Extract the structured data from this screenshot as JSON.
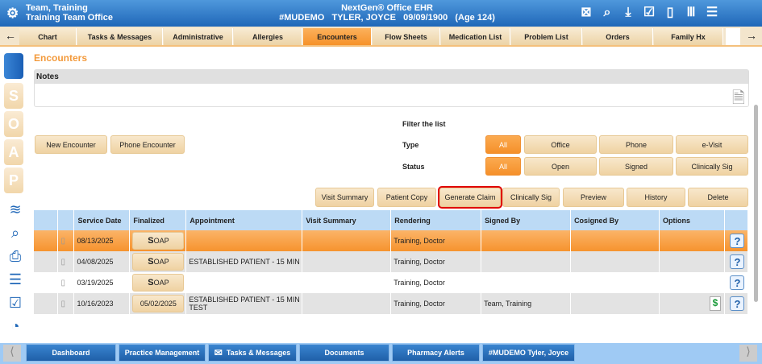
{
  "header": {
    "user": "Team, Training",
    "office": "Training Team Office",
    "app_title": "NextGen® Office EHR",
    "patient_line": "#MUDEMO   TYLER, JOYCE   09/09/1900   (Age 124)",
    "icons": [
      "gear-icon",
      "close-folder-icon",
      "search-doc-icon",
      "download-icon",
      "calendar-check-icon",
      "rx-bottle-icon",
      "lab-tubes-icon",
      "menu-list-icon"
    ]
  },
  "tabs": [
    "Chart",
    "Tasks & Messages",
    "Administrative",
    "Allergies",
    "Encounters",
    "Flow Sheets",
    "Medication List",
    "Problem List",
    "Orders",
    "Family Hx"
  ],
  "active_tab": "Encounters",
  "page_title": "Encounters",
  "notes": {
    "label": "Notes",
    "value": ""
  },
  "buttons": {
    "new_encounter": "New Encounter",
    "phone_encounter": "Phone Encounter"
  },
  "filter": {
    "title": "Filter the list",
    "type_label": "Type",
    "status_label": "Status",
    "type_options": [
      "All",
      "Office",
      "Phone",
      "e-Visit"
    ],
    "status_options": [
      "All",
      "Open",
      "Signed",
      "Clinically Sig"
    ],
    "type_selected": "All",
    "status_selected": "All"
  },
  "actions": [
    "Visit Summary",
    "Patient Copy",
    "Generate Claim",
    "Clinically Sig",
    "Preview",
    "History",
    "Delete"
  ],
  "highlighted_action": "Generate Claim",
  "table": {
    "columns": [
      "",
      "",
      "Service Date",
      "Finalized",
      "Appointment",
      "Visit Summary",
      "Rendering",
      "Signed By",
      "Cosigned By",
      "Options",
      ""
    ],
    "rows": [
      {
        "date": "08/13/2025",
        "finalized": "SOAP",
        "appointment": "",
        "visit_summary": "",
        "rendering": "Training, Doctor",
        "signed_by": "",
        "cosigned_by": "",
        "claim": false
      },
      {
        "date": "04/08/2025",
        "finalized": "SOAP",
        "appointment": "ESTABLISHED PATIENT - 15 MIN",
        "visit_summary": "",
        "rendering": "Training, Doctor",
        "signed_by": "",
        "cosigned_by": "",
        "claim": false
      },
      {
        "date": "03/19/2025",
        "finalized": "SOAP",
        "appointment": "",
        "visit_summary": "",
        "rendering": "Training, Doctor",
        "signed_by": "",
        "cosigned_by": "",
        "claim": false
      },
      {
        "date": "10/16/2023",
        "finalized": "05/02/2025",
        "appointment": "ESTABLISHED PATIENT - 15 MIN TEST",
        "visit_summary": "",
        "rendering": "Training, Doctor",
        "signed_by": "Team, Training",
        "cosigned_by": "",
        "claim": true
      }
    ]
  },
  "rail": [
    "S",
    "O",
    "A",
    "P"
  ],
  "bottom_tabs": [
    "Dashboard",
    "Practice Management",
    "Tasks & Messages",
    "Documents",
    "Pharmacy Alerts",
    "#MUDEMO  Tyler, Joyce"
  ],
  "colors": {
    "header": "#1f67b8",
    "accent": "#f6922a",
    "title": "#f39a3c",
    "highlight": "#e00000"
  }
}
